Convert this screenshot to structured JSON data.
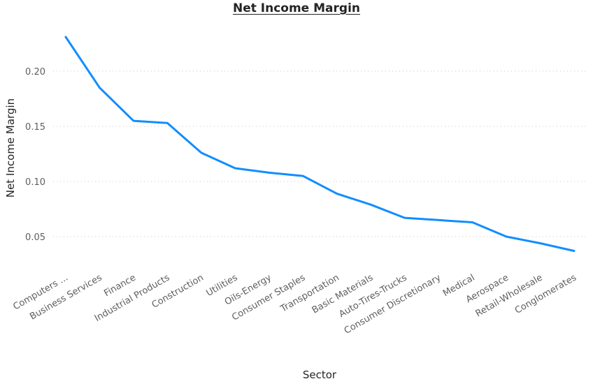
{
  "chart_data": {
    "type": "line",
    "title": "Net Income Margin",
    "xlabel": "Sector",
    "ylabel": "Net Income Margin",
    "categories": [
      "Computers ...",
      "Business Services",
      "Finance",
      "Industrial Products",
      "Construction",
      "Utilities",
      "Oils-Energy",
      "Consumer Staples",
      "Transportation",
      "Basic Materials",
      "Auto-Tires-Trucks",
      "Consumer Discretionary",
      "Medical",
      "Aerospace",
      "Retail-Wholesale",
      "Conglomerates"
    ],
    "series": [
      {
        "values": [
          0.231,
          0.185,
          0.155,
          0.153,
          0.126,
          0.112,
          0.108,
          0.105,
          0.089,
          0.079,
          0.067,
          0.065,
          0.063,
          0.05,
          0.044,
          0.037
        ],
        "color": "#118dff"
      }
    ],
    "yticks": [
      0.05,
      0.1,
      0.15,
      0.2
    ],
    "ytick_labels": [
      "0.05",
      "0.10",
      "0.15",
      "0.20"
    ],
    "ylim": [
      0.02,
      0.245
    ],
    "grid": true,
    "legend": "none"
  }
}
